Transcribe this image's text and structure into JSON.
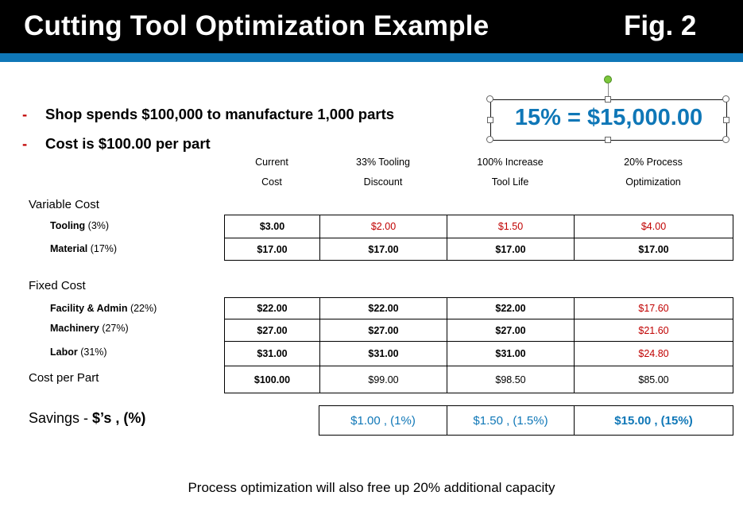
{
  "header": {
    "title": "Cutting Tool Optimization Example",
    "fig": "Fig. 2"
  },
  "colors": {
    "header_bg": "#000000",
    "accent_blue": "#0f77b7",
    "alert_red": "#c00000"
  },
  "bullets": [
    {
      "dash": "-",
      "text": "Shop spends $100,000 to manufacture 1,000 parts"
    },
    {
      "dash": "-",
      "text": "Cost is $100.00 per part"
    }
  ],
  "callout": {
    "text": "15% = $15,000.00"
  },
  "columns": [
    {
      "line1": "Current",
      "line2": "Cost"
    },
    {
      "line1": "33% Tooling",
      "line2": "Discount"
    },
    {
      "line1": "100% Increase",
      "line2": "Tool Life"
    },
    {
      "line1": "20% Process",
      "line2": "Optimization"
    }
  ],
  "sections": {
    "variable": "Variable Cost",
    "fixed": "Fixed Cost",
    "cost_per_part": "Cost per Part"
  },
  "rows": {
    "tooling": {
      "name": "Tooling",
      "pct": " (3%)",
      "values": [
        "$3.00",
        "$2.00",
        "$1.50",
        "$4.00"
      ]
    },
    "material": {
      "name": "Material",
      "pct": " (17%)",
      "values": [
        "$17.00",
        "$17.00",
        "$17.00",
        "$17.00"
      ]
    },
    "facility": {
      "name": "Facility & Admin",
      "pct": " (22%)",
      "values": [
        "$22.00",
        "$22.00",
        "$22.00",
        "$17.60"
      ]
    },
    "machinery": {
      "name": "Machinery",
      "pct": " (27%)",
      "values": [
        "$27.00",
        "$27.00",
        "$27.00",
        "$21.60"
      ]
    },
    "labor": {
      "name": "Labor",
      "pct": " (31%)",
      "values": [
        "$31.00",
        "$31.00",
        "$31.00",
        "$24.80"
      ]
    },
    "cost_per_part": {
      "values": [
        "$100.00",
        "$99.00",
        "$98.50",
        "$85.00"
      ]
    }
  },
  "savings": {
    "label_main": "Savings -  ",
    "label_units": "$’s , (%)",
    "values": [
      "$1.00 , (1%)",
      "$1.50 , (1.5%)",
      "$15.00 , (15%)"
    ]
  },
  "footer": "Process optimization will also free up 20% additional capacity"
}
